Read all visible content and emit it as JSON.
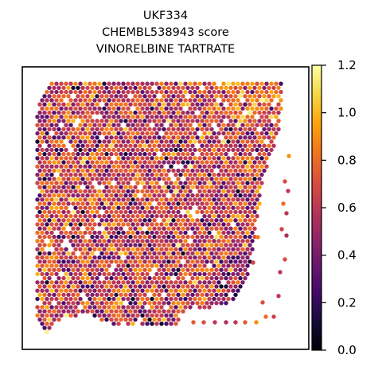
{
  "chart_data": {
    "type": "scatter",
    "title_lines": [
      "UKF334",
      "CHEMBL538943 score",
      "VINORELBINE TARTRATE"
    ],
    "xlabel": "",
    "ylabel": "",
    "colormap": "inferno",
    "colorbar": {
      "range": [
        0.0,
        1.2
      ],
      "ticks": [
        0.0,
        0.2,
        0.4,
        0.6,
        0.8,
        1.0,
        1.2
      ],
      "tick_labels": [
        "0.0",
        "0.2",
        "0.4",
        "0.6",
        "0.8",
        "1.0",
        "1.2"
      ]
    },
    "value_summary": {
      "typical": 0.65,
      "min": 0.05,
      "max": 1.2
    },
    "grid": false,
    "legend": "none"
  }
}
